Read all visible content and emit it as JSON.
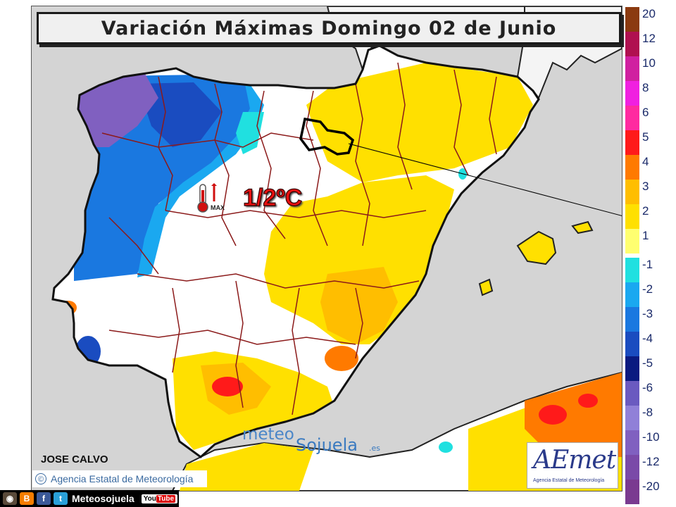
{
  "title": "Variación Máximas Domingo 02 de Junio",
  "annotation": "1/2ºC",
  "max_icon_label": "MAX",
  "author": "JOSE CALVO",
  "agency_credit": "Agencia Estatal de Meteorología",
  "copyright_symbol": "©",
  "watermark": {
    "part1": "meteo",
    "part2": "Sojuela",
    "part3": ".es"
  },
  "aemet_logo": {
    "name": "AEmet",
    "subtitle": "Agencia Estatal de Meteorología"
  },
  "social": {
    "label": "Meteosojuela",
    "youtube": "You",
    "youtube2": "Tube",
    "blogger": "B",
    "facebook": "f",
    "twitter": "t"
  },
  "legend": {
    "positive": [
      {
        "label": "20",
        "color": "#8b3a10"
      },
      {
        "label": "12",
        "color": "#b01050"
      },
      {
        "label": "10",
        "color": "#d020a0"
      },
      {
        "label": "8",
        "color": "#f020e0"
      },
      {
        "label": "6",
        "color": "#ff2aa0"
      },
      {
        "label": "5",
        "color": "#ff1a1a"
      },
      {
        "label": "4",
        "color": "#ff7a00"
      },
      {
        "label": "3",
        "color": "#ffbe00"
      },
      {
        "label": "2",
        "color": "#ffe000"
      },
      {
        "label": "1",
        "color": "#ffff70"
      }
    ],
    "negative": [
      {
        "label": "-1",
        "color": "#20e0e0"
      },
      {
        "label": "-2",
        "color": "#1aa8f0"
      },
      {
        "label": "-3",
        "color": "#1a78e0"
      },
      {
        "label": "-4",
        "color": "#1a4cc0"
      },
      {
        "label": "-5",
        "color": "#0a1a80"
      },
      {
        "label": "-6",
        "color": "#6a5ac0"
      },
      {
        "label": "-8",
        "color": "#9080d8"
      },
      {
        "label": "-10",
        "color": "#8060c0"
      },
      {
        "label": "-12",
        "color": "#7a4aa8"
      },
      {
        "label": "-20",
        "color": "#7a3a90"
      }
    ]
  },
  "colors": {
    "sea": "#d4d4d4",
    "land_neutral": "#ffffff",
    "border": "#8b1a1a",
    "coast": "#111111"
  }
}
